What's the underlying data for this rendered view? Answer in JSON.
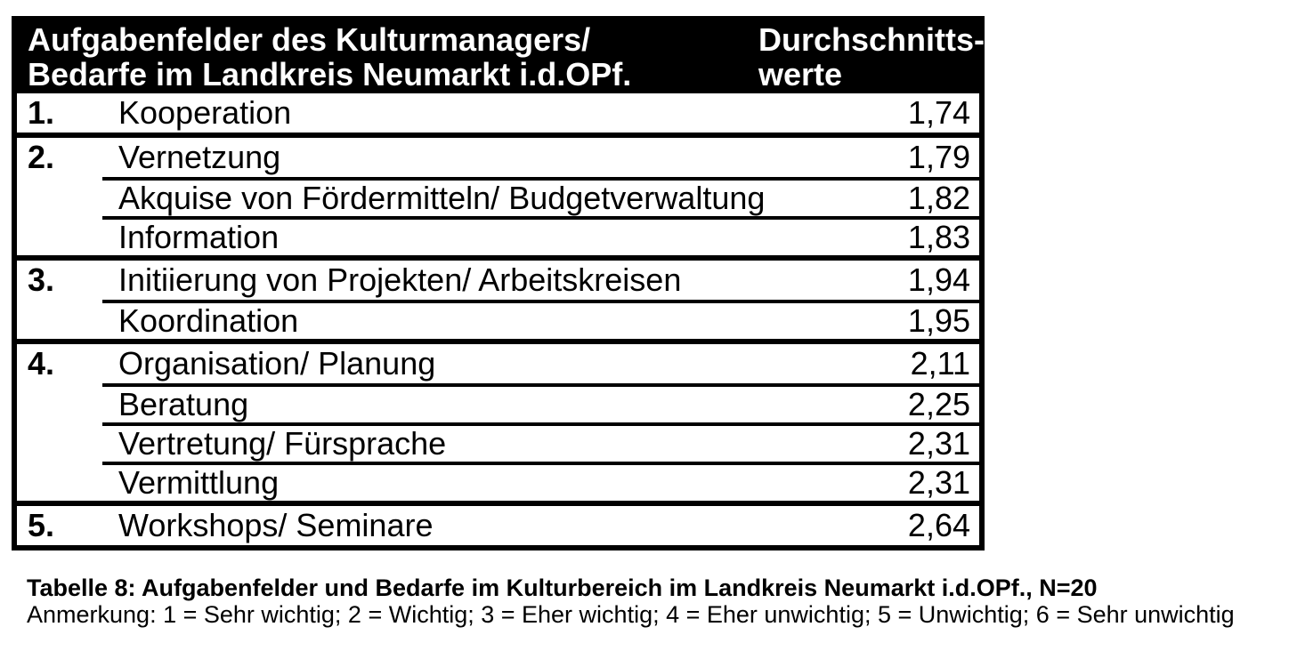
{
  "table": {
    "header": {
      "col_tasks": "Aufgabenfelder des Kulturmanagers/\nBedarfe im Landkreis Neumarkt i.d.OPf.",
      "col_value": "Durchschnitts-\nwerte"
    },
    "groups": [
      {
        "rank": "1.",
        "rows": [
          {
            "task": "Kooperation",
            "value": "1,74"
          }
        ]
      },
      {
        "rank": "2.",
        "rows": [
          {
            "task": "Vernetzung",
            "value": "1,79"
          },
          {
            "task": "Akquise von Fördermitteln/ Budgetverwaltung",
            "value": "1,82"
          },
          {
            "task": "Information",
            "value": "1,83"
          }
        ]
      },
      {
        "rank": "3.",
        "rows": [
          {
            "task": "Initiierung von Projekten/ Arbeitskreisen",
            "value": "1,94"
          },
          {
            "task": "Koordination",
            "value": "1,95"
          }
        ]
      },
      {
        "rank": "4.",
        "rows": [
          {
            "task": "Organisation/ Planung",
            "value": "2,11"
          },
          {
            "task": "Beratung",
            "value": "2,25"
          },
          {
            "task": "Vertretung/ Fürsprache",
            "value": "2,31"
          },
          {
            "task": "Vermittlung",
            "value": "2,31"
          }
        ]
      },
      {
        "rank": "5.",
        "rows": [
          {
            "task": "Workshops/ Seminare",
            "value": "2,64"
          }
        ]
      }
    ],
    "caption": "Tabelle 8: Aufgabenfelder und Bedarfe im Kulturbereich im Landkreis Neumarkt i.d.OPf., N=20",
    "note": "Anmerkung: 1 = Sehr wichtig; 2 = Wichtig; 3 = Eher wichtig; 4 = Eher unwichtig; 5 = Unwichtig; 6 = Sehr unwichtig"
  },
  "colors": {
    "background": "#ffffff",
    "border": "#000000",
    "header_bg": "#000000",
    "header_text": "#ffffff",
    "body_text": "#000000"
  }
}
